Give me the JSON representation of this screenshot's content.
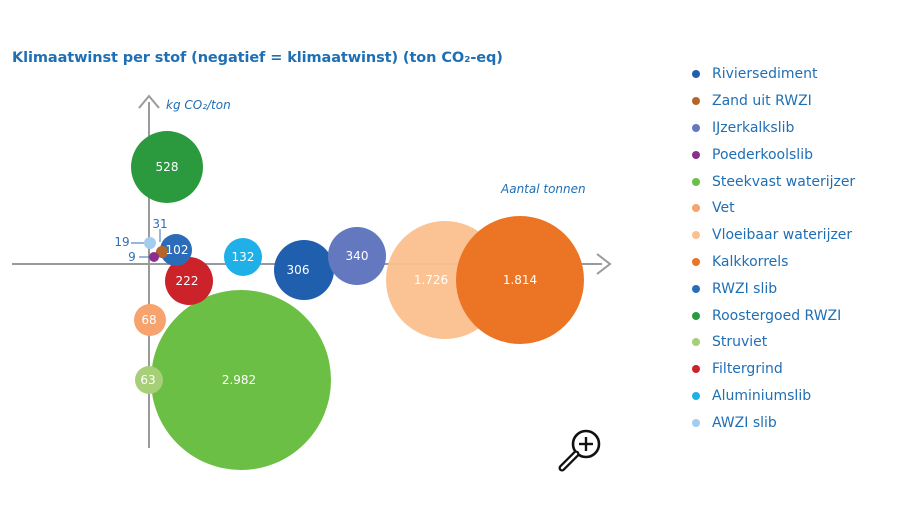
{
  "chart_data": {
    "type": "bubble",
    "title": "Klimaatwinst per stof (negatief = klimaatwinst) (ton CO₂-eq)",
    "ylabel": "kg CO₂/ton",
    "xlabel": "Aantal tonnen",
    "grid": false,
    "legend_position": "right",
    "series": [
      {
        "name": "Riviersediment",
        "value": 306,
        "label": "306",
        "color": "#1f5fae"
      },
      {
        "name": "Zand uit RWZI",
        "value": 31,
        "label": "31",
        "color": "#b5652a"
      },
      {
        "name": "IJzerkalkslib",
        "value": 340,
        "label": "340",
        "color": "#6478c0"
      },
      {
        "name": "Poederkoolslib",
        "value": 9,
        "label": "9",
        "color": "#8a2f8e"
      },
      {
        "name": "Steekvast waterijzer",
        "value": 2982,
        "label": "2.982",
        "color": "#6cbf45"
      },
      {
        "name": "Vet",
        "value": 68,
        "label": "68",
        "color": "#f6a36e"
      },
      {
        "name": "Vloeibaar waterijzer",
        "value": 1726,
        "label": "1.726",
        "color": "#fbc08e"
      },
      {
        "name": "Kalkkorrels",
        "value": 1814,
        "label": "1.814",
        "color": "#ec7425"
      },
      {
        "name": "RWZI slib",
        "value": 102,
        "label": "102",
        "color": "#2b6cb9"
      },
      {
        "name": "Roostergoed RWZI",
        "value": 528,
        "label": "528",
        "color": "#2b9a3f"
      },
      {
        "name": "Struviet",
        "value": 63,
        "label": "63",
        "color": "#a6cf78"
      },
      {
        "name": "Filtergrind",
        "value": 222,
        "label": "222",
        "color": "#cc2229"
      },
      {
        "name": "Aluminiumslib",
        "value": 132,
        "label": "132",
        "color": "#1fb0e8"
      },
      {
        "name": "AWZI slib",
        "value": 19,
        "label": "19",
        "color": "#a2cdef"
      }
    ]
  }
}
